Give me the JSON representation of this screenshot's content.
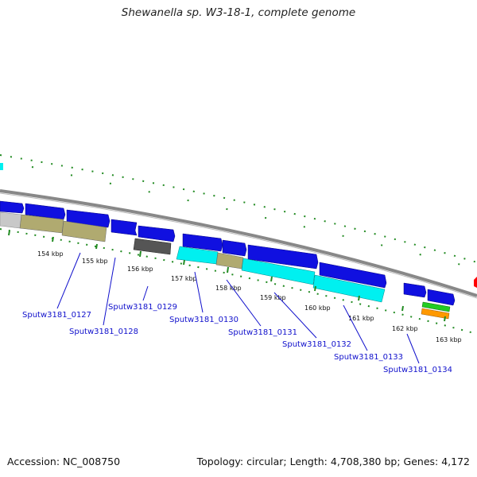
{
  "header": {
    "title": "Shewanella sp. W3-18-1, complete genome"
  },
  "footer": {
    "accession": "Accession: NC_008750",
    "topology": "Topology: circular; Length: 4,708,380 bp; Genes: 4,172"
  },
  "ticks": {
    "t154": "154 kbp",
    "t155": "155 kbp",
    "t156": "156 kbp",
    "t157": "157 kbp",
    "t158": "158 kbp",
    "t159": "159 kbp",
    "t160": "160 kbp",
    "t161": "161 kbp",
    "t162": "162 kbp",
    "t163": "163 kbp"
  },
  "loci": {
    "l127": "Sputw3181_0127",
    "l128": "Sputw3181_0128",
    "l129": "Sputw3181_0129",
    "l130": "Sputw3181_0130",
    "l131": "Sputw3181_0131",
    "l132": "Sputw3181_0132",
    "l133": "Sputw3181_0133",
    "l134": "Sputw3181_0134"
  },
  "colors": {
    "cds_forward": "#1010e0",
    "olive": "#b0aa70",
    "cyan": "#00f0f0",
    "dark_gray": "#555555",
    "light_gray": "#c8c8c8",
    "green_tick": "#228b22",
    "backbone": "#888888",
    "label_blue": "#1010cc",
    "red": "#ff0000",
    "green": "#22cc22",
    "orange": "#ff9900"
  }
}
